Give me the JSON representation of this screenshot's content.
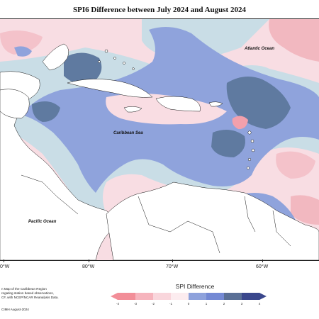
{
  "title": "SPI6 Difference between July 2024 and August 2024",
  "labels": {
    "atlantic": "Atlantic Ocean",
    "caribbean": "Caribbean Sea",
    "pacific": "Pacific Ocean"
  },
  "longitudes": [
    "0°W",
    "80°W",
    "70°W",
    "60°W"
  ],
  "credit_lines": [
    "n Map of the Caribbean Region",
    "regating station based observations,",
    "CF, with NCEP/NCAR Reanalysis Data.",
    "CIMH August-2024"
  ],
  "legend": {
    "title": "SPI Difference",
    "ticks": [
      "-4",
      "-3",
      "-2",
      "-1",
      "0",
      "1",
      "2",
      "3",
      "4"
    ],
    "colors": [
      "#f28e98",
      "#f6b4bd",
      "#f9d6dc",
      "#fcecef",
      "#c8dde6",
      "#8ea2dc",
      "#7489d4",
      "#5a6f96",
      "#3a478c"
    ]
  }
}
